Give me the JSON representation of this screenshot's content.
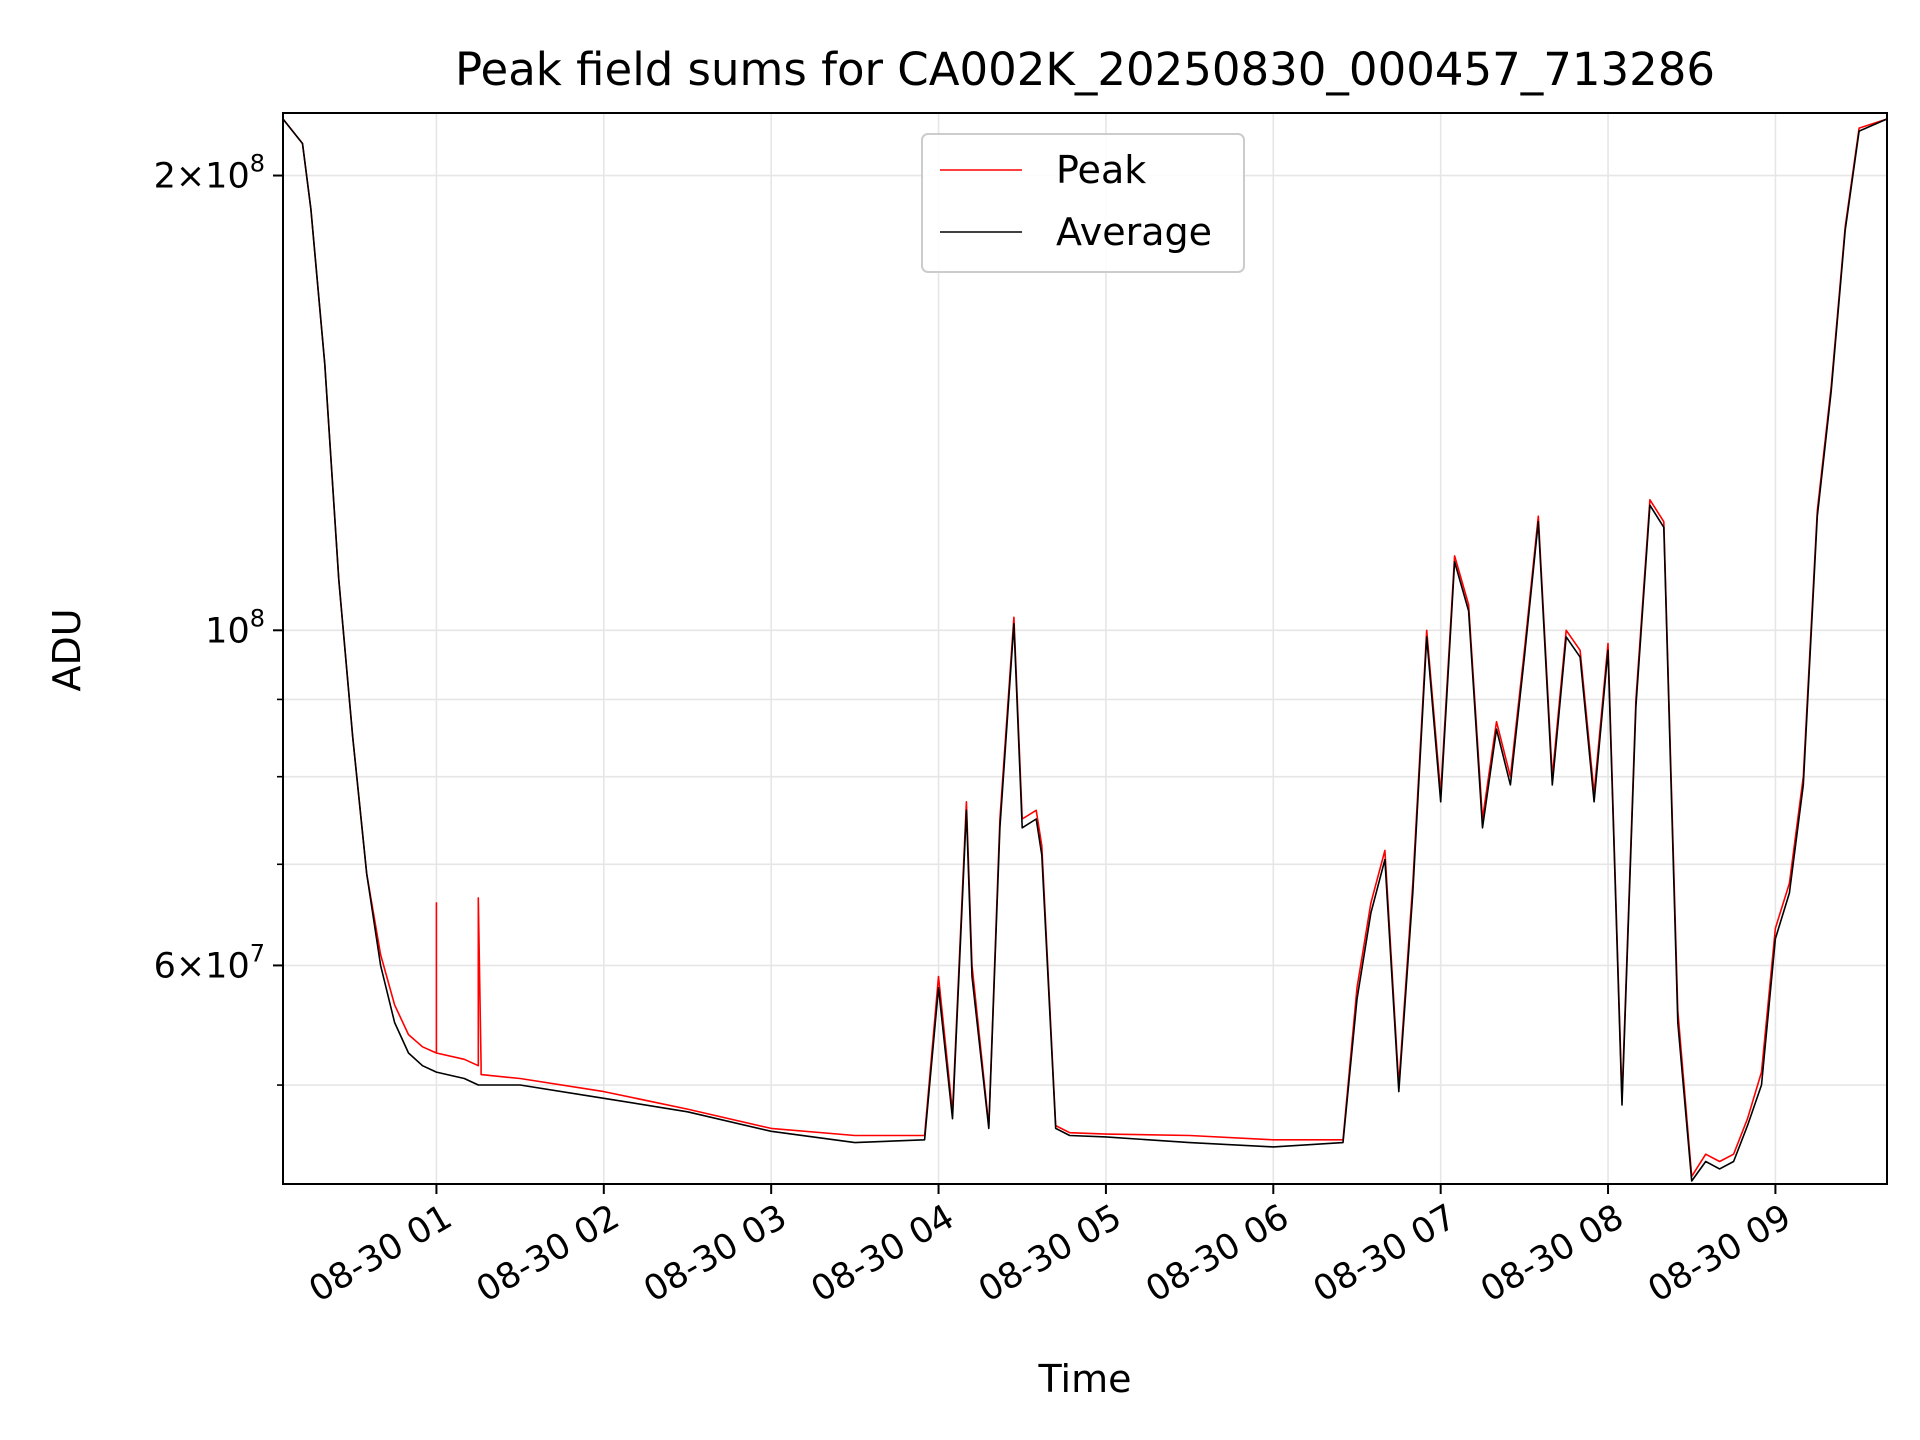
{
  "chart_data": {
    "type": "line",
    "title": "Peak field sums for CA002K_20250830_000457_713286",
    "xlabel": "Time",
    "ylabel": "ADU",
    "y_scale": "log",
    "ylim": [
      43000000,
      220000000
    ],
    "xlim": [
      "2025-08-30 00:05",
      "2025-08-30 09:40"
    ],
    "grid": true,
    "legend_position": "upper center",
    "x_ticks": [
      {
        "value": "2025-08-30 01:00",
        "label": "08-30 01"
      },
      {
        "value": "2025-08-30 02:00",
        "label": "08-30 02"
      },
      {
        "value": "2025-08-30 03:00",
        "label": "08-30 03"
      },
      {
        "value": "2025-08-30 04:00",
        "label": "08-30 04"
      },
      {
        "value": "2025-08-30 05:00",
        "label": "08-30 05"
      },
      {
        "value": "2025-08-30 06:00",
        "label": "08-30 06"
      },
      {
        "value": "2025-08-30 07:00",
        "label": "08-30 07"
      },
      {
        "value": "2025-08-30 08:00",
        "label": "08-30 08"
      },
      {
        "value": "2025-08-30 09:00",
        "label": "08-30 09"
      }
    ],
    "y_ticks_major": [
      {
        "value": 60000000,
        "base": "6",
        "exp": "7",
        "mult": true
      },
      {
        "value": 100000000,
        "base": "10",
        "exp": "8",
        "mult": false
      },
      {
        "value": 200000000,
        "base": "2",
        "exp": "8",
        "mult": true
      }
    ],
    "y_ticks_minor": [
      50000000,
      70000000,
      80000000,
      90000000
    ],
    "series": [
      {
        "name": "Peak",
        "color": "#ff0000",
        "x": [
          "2025-08-30 00:05",
          "2025-08-30 00:12",
          "2025-08-30 00:15",
          "2025-08-30 00:20",
          "2025-08-30 00:25",
          "2025-08-30 00:30",
          "2025-08-30 00:35",
          "2025-08-30 00:40",
          "2025-08-30 00:45",
          "2025-08-30 00:50",
          "2025-08-30 00:55",
          "2025-08-30 01:00",
          "2025-08-30 01:00",
          "2025-08-30 01:00",
          "2025-08-30 01:10",
          "2025-08-30 01:15",
          "2025-08-30 01:15",
          "2025-08-30 01:16",
          "2025-08-30 01:16",
          "2025-08-30 01:16",
          "2025-08-30 01:30",
          "2025-08-30 02:00",
          "2025-08-30 02:30",
          "2025-08-30 03:00",
          "2025-08-30 03:30",
          "2025-08-30 03:55",
          "2025-08-30 04:00",
          "2025-08-30 04:05",
          "2025-08-30 04:10",
          "2025-08-30 04:12",
          "2025-08-30 04:18",
          "2025-08-30 04:22",
          "2025-08-30 04:27",
          "2025-08-30 04:30",
          "2025-08-30 04:35",
          "2025-08-30 04:37",
          "2025-08-30 04:42",
          "2025-08-30 04:47",
          "2025-08-30 05:00",
          "2025-08-30 05:30",
          "2025-08-30 06:00",
          "2025-08-30 06:25",
          "2025-08-30 06:30",
          "2025-08-30 06:35",
          "2025-08-30 06:40",
          "2025-08-30 06:45",
          "2025-08-30 06:50",
          "2025-08-30 06:55",
          "2025-08-30 07:00",
          "2025-08-30 07:05",
          "2025-08-30 07:10",
          "2025-08-30 07:15",
          "2025-08-30 07:20",
          "2025-08-30 07:25",
          "2025-08-30 07:30",
          "2025-08-30 07:35",
          "2025-08-30 07:40",
          "2025-08-30 07:45",
          "2025-08-30 07:50",
          "2025-08-30 07:55",
          "2025-08-30 08:00",
          "2025-08-30 08:05",
          "2025-08-30 08:10",
          "2025-08-30 08:15",
          "2025-08-30 08:20",
          "2025-08-30 08:25",
          "2025-08-30 08:30",
          "2025-08-30 08:35",
          "2025-08-30 08:40",
          "2025-08-30 08:45",
          "2025-08-30 08:50",
          "2025-08-30 08:55",
          "2025-08-30 09:00",
          "2025-08-30 09:05",
          "2025-08-30 09:10",
          "2025-08-30 09:15",
          "2025-08-30 09:20",
          "2025-08-30 09:25",
          "2025-08-30 09:30",
          "2025-08-30 09:40"
        ],
        "y": [
          218000000,
          210000000,
          190000000,
          150000000,
          108000000,
          85000000,
          69000000,
          61000000,
          56500000,
          54000000,
          53000000,
          52500000,
          66000000,
          52500000,
          52000000,
          51500000,
          66500000,
          51500000,
          51000000,
          50800000,
          50500000,
          49500000,
          48200000,
          46800000,
          46300000,
          46300000,
          59000000,
          48000000,
          77000000,
          60000000,
          47000000,
          75000000,
          102000000,
          75000000,
          76000000,
          72000000,
          47000000,
          46500000,
          46400000,
          46300000,
          46000000,
          46000000,
          58000000,
          66000000,
          71500000,
          50000000,
          68000000,
          100000000,
          78000000,
          112000000,
          104000000,
          75000000,
          87000000,
          80000000,
          97000000,
          119000000,
          80000000,
          100000000,
          97000000,
          78000000,
          98000000,
          49000000,
          90000000,
          122000000,
          118000000,
          56000000,
          43500000,
          45000000,
          44500000,
          45000000,
          47500000,
          51000000,
          63500000,
          68000000,
          80000000,
          120000000,
          145000000,
          185000000,
          215000000,
          218000000
        ]
      },
      {
        "name": "Average",
        "color": "#000000",
        "x": [
          "2025-08-30 00:05",
          "2025-08-30 00:12",
          "2025-08-30 00:15",
          "2025-08-30 00:20",
          "2025-08-30 00:25",
          "2025-08-30 00:30",
          "2025-08-30 00:35",
          "2025-08-30 00:40",
          "2025-08-30 00:45",
          "2025-08-30 00:50",
          "2025-08-30 00:55",
          "2025-08-30 01:00",
          "2025-08-30 01:10",
          "2025-08-30 01:15",
          "2025-08-30 01:30",
          "2025-08-30 02:00",
          "2025-08-30 02:30",
          "2025-08-30 03:00",
          "2025-08-30 03:30",
          "2025-08-30 03:55",
          "2025-08-30 04:00",
          "2025-08-30 04:05",
          "2025-08-30 04:10",
          "2025-08-30 04:12",
          "2025-08-30 04:18",
          "2025-08-30 04:22",
          "2025-08-30 04:27",
          "2025-08-30 04:30",
          "2025-08-30 04:35",
          "2025-08-30 04:37",
          "2025-08-30 04:42",
          "2025-08-30 04:47",
          "2025-08-30 05:00",
          "2025-08-30 05:30",
          "2025-08-30 06:00",
          "2025-08-30 06:25",
          "2025-08-30 06:30",
          "2025-08-30 06:35",
          "2025-08-30 06:40",
          "2025-08-30 06:45",
          "2025-08-30 06:50",
          "2025-08-30 06:55",
          "2025-08-30 07:00",
          "2025-08-30 07:05",
          "2025-08-30 07:10",
          "2025-08-30 07:15",
          "2025-08-30 07:20",
          "2025-08-30 07:25",
          "2025-08-30 07:30",
          "2025-08-30 07:35",
          "2025-08-30 07:40",
          "2025-08-30 07:45",
          "2025-08-30 07:50",
          "2025-08-30 07:55",
          "2025-08-30 08:00",
          "2025-08-30 08:05",
          "2025-08-30 08:10",
          "2025-08-30 08:15",
          "2025-08-30 08:20",
          "2025-08-30 08:25",
          "2025-08-30 08:30",
          "2025-08-30 08:35",
          "2025-08-30 08:40",
          "2025-08-30 08:45",
          "2025-08-30 08:50",
          "2025-08-30 08:55",
          "2025-08-30 09:00",
          "2025-08-30 09:05",
          "2025-08-30 09:10",
          "2025-08-30 09:15",
          "2025-08-30 09:20",
          "2025-08-30 09:25",
          "2025-08-30 09:30",
          "2025-08-30 09:40"
        ],
        "y": [
          218000000,
          210000000,
          190000000,
          150000000,
          108000000,
          85000000,
          69000000,
          60000000,
          55000000,
          52500000,
          51500000,
          51000000,
          50500000,
          50000000,
          50000000,
          49000000,
          48000000,
          46600000,
          45800000,
          46000000,
          58000000,
          47500000,
          76000000,
          59000000,
          46800000,
          74000000,
          101000000,
          74000000,
          75000000,
          71000000,
          46800000,
          46300000,
          46200000,
          45800000,
          45500000,
          45800000,
          57000000,
          65000000,
          70500000,
          49500000,
          67000000,
          99000000,
          77000000,
          111000000,
          103000000,
          74000000,
          86000000,
          79000000,
          96000000,
          118000000,
          79000000,
          99000000,
          96000000,
          77000000,
          97000000,
          48500000,
          89000000,
          121000000,
          117000000,
          55000000,
          43200000,
          44500000,
          44000000,
          44500000,
          47000000,
          50000000,
          62500000,
          67000000,
          79000000,
          119000000,
          144000000,
          184000000,
          214000000,
          218000000
        ]
      }
    ]
  }
}
